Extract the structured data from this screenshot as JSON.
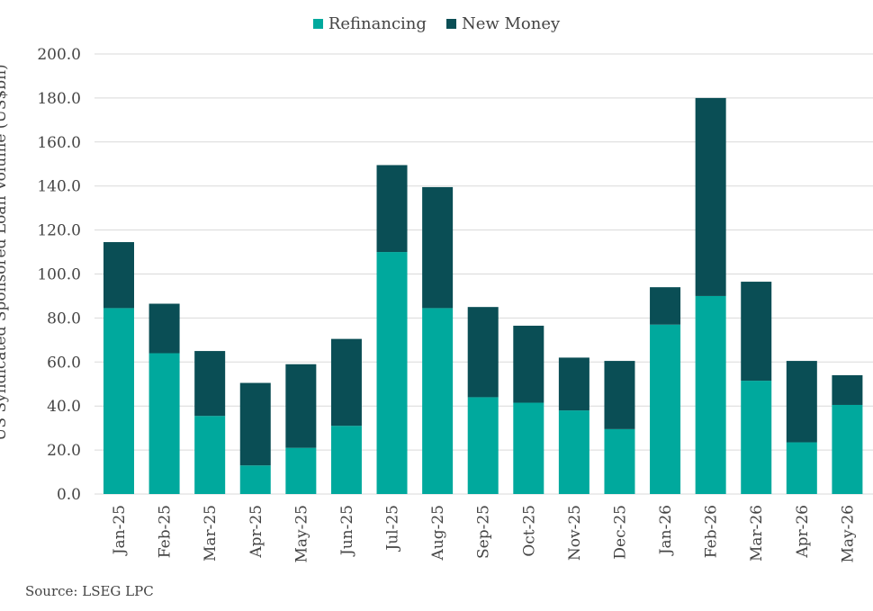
{
  "chart_data": {
    "type": "bar",
    "stacked": true,
    "categories": [
      "Jan-25",
      "Feb-25",
      "Mar-25",
      "Apr-25",
      "May-25",
      "Jun-25",
      "Jul-25",
      "Aug-25",
      "Sep-25",
      "Oct-25",
      "Nov-25",
      "Dec-25",
      "Jan-26",
      "Feb-26",
      "Mar-26",
      "Apr-26",
      "May-26"
    ],
    "series": [
      {
        "name": "Refinancing",
        "color": "#00A99D",
        "values": [
          84.5,
          64,
          35.5,
          13,
          21,
          31,
          110,
          84.5,
          44,
          41.5,
          38,
          29.5,
          77,
          90,
          51.5,
          23.5,
          40.5
        ]
      },
      {
        "name": "New Money",
        "color": "#0A4E55",
        "values": [
          30,
          22.5,
          29.5,
          37.5,
          38,
          39.5,
          39.5,
          55,
          41,
          35,
          24,
          31,
          17,
          90,
          45,
          37,
          13.5
        ]
      }
    ],
    "ylabel": "US Syndicated Sponsored Loan Volume (US$bn)",
    "xlabel": "",
    "ylim": [
      0,
      200
    ],
    "yticks": [
      "0.0",
      "20.0",
      "40.0",
      "60.0",
      "80.0",
      "100.0",
      "120.0",
      "140.0",
      "160.0",
      "180.0",
      "200.0"
    ],
    "grid": true,
    "legend_position": "top-center"
  },
  "source": "Source: LSEG LPC"
}
